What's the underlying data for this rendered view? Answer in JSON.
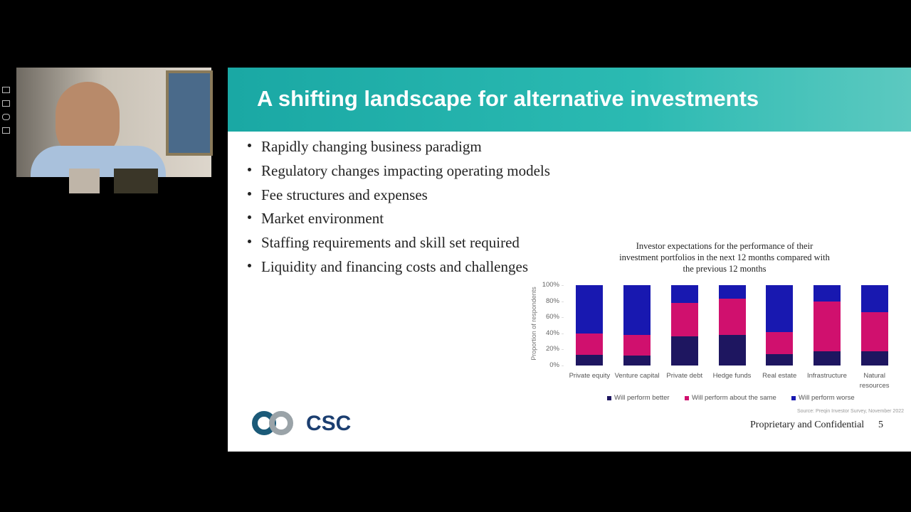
{
  "slide": {
    "title": "A shifting landscape for alternative investments",
    "bullets": [
      "Rapidly changing business paradigm",
      "Regulatory changes impacting operating models",
      "Fee structures and expenses",
      "Market environment",
      "Staffing requirements and skill set required",
      "Liquidity and financing costs and challenges"
    ],
    "logo_text": "CSC",
    "footer": "Proprietary and Confidential",
    "page_number": 5
  },
  "chart_data": {
    "type": "stacked_bar",
    "title": "Investor expectations for the performance of their investment portfolios in the next 12 months compared with the previous 12 months",
    "y_label": "Proportion of respondents",
    "categories": [
      "Private equity",
      "Venture capital",
      "Private debt",
      "Hedge funds",
      "Real estate",
      "Infrastructure",
      "Natural resources"
    ],
    "series": [
      {
        "name": "Will perform better",
        "color": "#1e1660",
        "values": [
          13,
          12,
          36,
          38,
          14,
          18,
          18
        ]
      },
      {
        "name": "Will perform about the same",
        "color": "#d0106e",
        "values": [
          27,
          26,
          42,
          45,
          28,
          62,
          48
        ]
      },
      {
        "name": "Will perform worse",
        "color": "#1818b0",
        "values": [
          60,
          62,
          22,
          17,
          58,
          20,
          34
        ]
      }
    ],
    "ylim": [
      0,
      100
    ],
    "yticks": [
      {
        "value": 0,
        "label": "0%"
      },
      {
        "value": 20,
        "label": "20%"
      },
      {
        "value": 40,
        "label": "40%"
      },
      {
        "value": 60,
        "label": "60%"
      },
      {
        "value": 80,
        "label": "80%"
      },
      {
        "value": 100,
        "label": "100%"
      }
    ],
    "source": "Source: Preqin Investor Survey, November 2022"
  }
}
